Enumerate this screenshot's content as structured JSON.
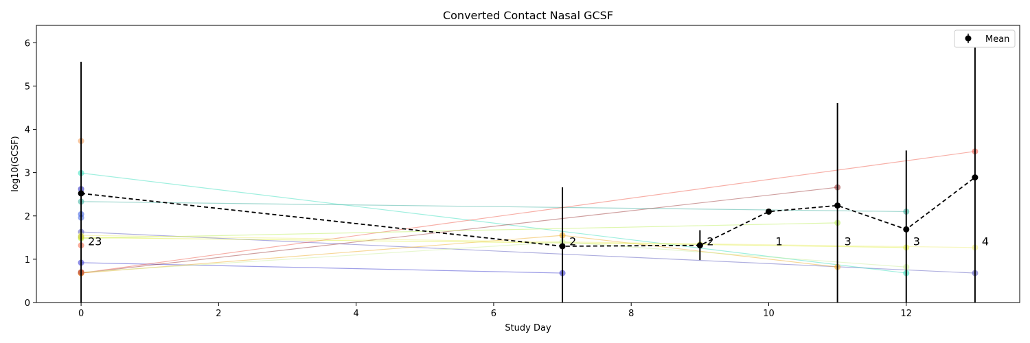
{
  "chart_data": {
    "type": "line",
    "title": "Converted Contact Nasal GCSF",
    "xlabel": "Study Day",
    "ylabel": "log10(GCSF)",
    "xlim": [
      -0.65,
      13.65
    ],
    "ylim": [
      0,
      6.4
    ],
    "xticks": [
      0,
      2,
      4,
      6,
      8,
      10,
      12
    ],
    "yticks": [
      0,
      1,
      2,
      3,
      4,
      5,
      6
    ],
    "legend": {
      "entries": [
        "Mean"
      ],
      "placement": "top-right"
    },
    "subjects": [
      {
        "color": "#4040d0",
        "points": [
          [
            0,
            0.92
          ],
          [
            7,
            0.68
          ]
        ]
      },
      {
        "color": "#6060c0",
        "points": [
          [
            0,
            1.63
          ],
          [
            13,
            0.68
          ]
        ]
      },
      {
        "color": "#40e0c0",
        "points": [
          [
            0,
            2.99
          ],
          [
            12,
            0.68
          ]
        ]
      },
      {
        "color": "#40b0a0",
        "points": [
          [
            0,
            2.33
          ],
          [
            12,
            2.1
          ]
        ]
      },
      {
        "color": "#a04040",
        "points": [
          [
            0,
            0.68
          ],
          [
            11,
            2.66
          ]
        ]
      },
      {
        "color": "#f06050",
        "points": [
          [
            0,
            0.68
          ],
          [
            13,
            3.49
          ]
        ]
      },
      {
        "color": "#f0b030",
        "points": [
          [
            0,
            0.68
          ],
          [
            7,
            1.55
          ],
          [
            11,
            0.82
          ]
        ]
      },
      {
        "color": "#c0f060",
        "points": [
          [
            0,
            1.48
          ],
          [
            11,
            1.84
          ]
        ]
      },
      {
        "color": "#e0f040",
        "points": [
          [
            0,
            1.5
          ],
          [
            9,
            1.34
          ],
          [
            12,
            1.27
          ]
        ]
      },
      {
        "color": "#f0f080",
        "points": [
          [
            0,
            1.55
          ],
          [
            13,
            1.27
          ]
        ]
      },
      {
        "color": "#d0f0a0",
        "points": [
          [
            0,
            0.7
          ],
          [
            7,
            1.4
          ],
          [
            12,
            0.82
          ]
        ]
      },
      {
        "color": "#f0a060",
        "points": [
          [
            0,
            3.73
          ]
        ]
      },
      {
        "color": "#4060e0",
        "points": [
          [
            0,
            2.04
          ]
        ]
      },
      {
        "color": "#5070e0",
        "points": [
          [
            0,
            1.96
          ]
        ]
      },
      {
        "color": "#3030c0",
        "points": [
          [
            0,
            2.62
          ]
        ]
      },
      {
        "color": "#f07050",
        "points": [
          [
            0,
            1.32
          ]
        ]
      },
      {
        "color": "#c0c040",
        "points": [
          [
            0,
            1.52
          ]
        ]
      },
      {
        "color": "#c02020",
        "points": [
          [
            0,
            0.7
          ]
        ]
      },
      {
        "color": "#d0e060",
        "points": [
          [
            10,
            2.1
          ]
        ]
      }
    ],
    "mean": {
      "name": "Mean",
      "x": [
        0,
        7,
        9,
        10,
        11,
        12,
        13
      ],
      "y": [
        2.52,
        1.3,
        1.32,
        2.1,
        2.24,
        1.69,
        2.89
      ],
      "yerr_low": [
        0,
        0,
        0.98,
        2.1,
        0,
        0,
        0
      ],
      "yerr_high": [
        5.56,
        2.66,
        1.67,
        2.1,
        4.61,
        3.51,
        6.06
      ]
    },
    "counts": [
      {
        "x": 0,
        "label": "23"
      },
      {
        "x": 7,
        "label": "2"
      },
      {
        "x": 9,
        "label": "2"
      },
      {
        "x": 10,
        "label": "1"
      },
      {
        "x": 11,
        "label": "3"
      },
      {
        "x": 12,
        "label": "3"
      },
      {
        "x": 13,
        "label": "4"
      }
    ],
    "count_label_y": 1.4
  }
}
